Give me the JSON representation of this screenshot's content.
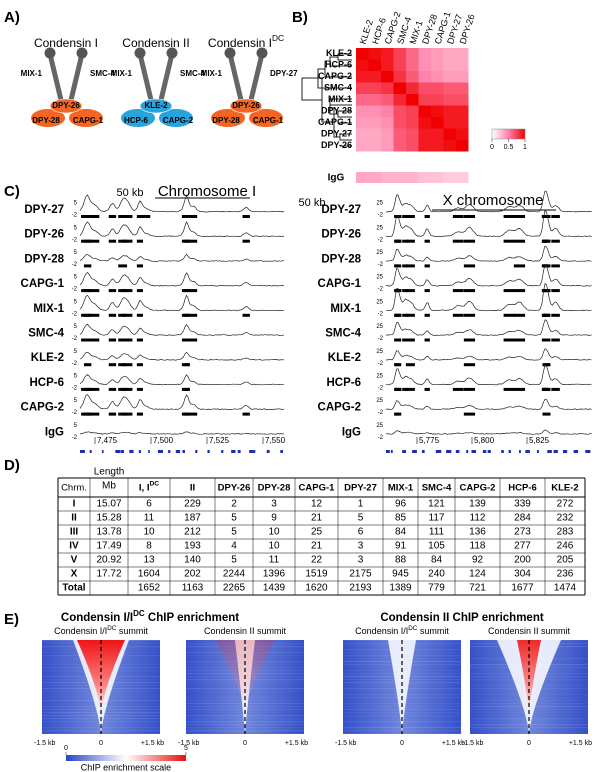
{
  "panel_labels": [
    "A)",
    "B)",
    "C)",
    "D)",
    "E)"
  ],
  "panel_a": {
    "complexes": [
      {
        "title": "Condensin I",
        "color": "#e8431e",
        "subunit_color": "#f26522",
        "subunits": [
          "MIX-1",
          "SMC-4",
          "DPY-26",
          "DPY-28",
          "CAPG-1"
        ]
      },
      {
        "title": "Condensin II",
        "color": "#29a3dc",
        "subunit_color": "#29a3dc",
        "subunits": [
          "MIX-1",
          "SMC-4",
          "KLE-2",
          "HCP-6",
          "CAPG-2"
        ]
      },
      {
        "title": "Condensin I",
        "title_sup": "DC",
        "color": "#e8431e",
        "subunit_color": "#f26522",
        "subunits": [
          "MIX-1",
          "DPY-27",
          "DPY-26",
          "DPY-28",
          "CAPG-1"
        ]
      }
    ]
  },
  "panel_b": {
    "labels": [
      "KLE-2",
      "HCP-6",
      "CAPG-2",
      "SMC-4",
      "MIX-1",
      "DPY-28",
      "CAPG-1",
      "DPY-27",
      "DPY-26"
    ],
    "label_colors": [
      "#29a3dc",
      "#29a3dc",
      "#29a3dc",
      "#000000",
      "#000000",
      "#e8431e",
      "#e8431e",
      "#000000",
      "#e8431e"
    ],
    "matrix": [
      [
        1,
        0.95,
        0.9,
        0.75,
        0.6,
        0.45,
        0.4,
        0.35,
        0.35
      ],
      [
        0.95,
        1,
        0.9,
        0.75,
        0.6,
        0.45,
        0.4,
        0.35,
        0.35
      ],
      [
        0.9,
        0.9,
        1,
        0.8,
        0.65,
        0.5,
        0.45,
        0.4,
        0.4
      ],
      [
        0.75,
        0.75,
        0.8,
        1,
        0.85,
        0.7,
        0.7,
        0.65,
        0.65
      ],
      [
        0.6,
        0.6,
        0.65,
        0.85,
        1,
        0.75,
        0.75,
        0.7,
        0.7
      ],
      [
        0.45,
        0.45,
        0.5,
        0.7,
        0.75,
        1,
        0.95,
        0.9,
        0.9
      ],
      [
        0.4,
        0.4,
        0.45,
        0.7,
        0.75,
        0.95,
        1,
        0.9,
        0.9
      ],
      [
        0.35,
        0.35,
        0.4,
        0.65,
        0.7,
        0.9,
        0.9,
        1,
        0.95
      ],
      [
        0.35,
        0.35,
        0.4,
        0.65,
        0.7,
        0.9,
        0.9,
        0.95,
        1
      ]
    ],
    "igg_label": "IgG",
    "igg_values": [
      0.35,
      0.35,
      0.3,
      0.3,
      0.3,
      0.25,
      0.25,
      0.2,
      0.2
    ],
    "scale_ticks": [
      0,
      0.5,
      1
    ]
  },
  "panel_c": {
    "scale_bar": "50 kb",
    "track_colors": [
      "#000000",
      "#e8431e",
      "#e8431e",
      "#e8431e",
      "#000000",
      "#000000",
      "#29a3dc",
      "#29a3dc",
      "#29a3dc",
      "#000000"
    ],
    "chromosomes": [
      {
        "title": "Chromosome I",
        "scale_top": "5",
        "scale_bottom": "-2",
        "tracks": [
          "DPY-27",
          "DPY-26",
          "DPY-28",
          "CAPG-1",
          "MIX-1",
          "SMC-4",
          "KLE-2",
          "HCP-6",
          "CAPG-2",
          "IgG"
        ],
        "coords": [
          "7,475",
          "7,500",
          "7,525",
          "7,550"
        ]
      },
      {
        "title": "X chromosome",
        "scale_top": "25",
        "scale_bottom": "-2",
        "tracks": [
          "DPY-27",
          "DPY-26",
          "DPY-28",
          "CAPG-1",
          "MIX-1",
          "SMC-4",
          "KLE-2",
          "HCP-6",
          "CAPG-2",
          "IgG"
        ],
        "coords": [
          "5,775",
          "5,800",
          "5,825"
        ]
      }
    ]
  },
  "panel_d": {
    "columns": [
      {
        "text": "Chrm.",
        "color": "#000000"
      },
      {
        "text": "Length",
        "line2": "Mb",
        "color": "#000000"
      },
      {
        "text": "I, I",
        "sup": "DC",
        "color": "#e8431e"
      },
      {
        "text": "II",
        "color": "#29a3dc"
      },
      {
        "text": "DPY-26",
        "color": "#e8431e"
      },
      {
        "text": "DPY-28",
        "color": "#e8431e"
      },
      {
        "text": "CAPG-1",
        "color": "#e8431e"
      },
      {
        "text": "DPY-27",
        "color": "#000000"
      },
      {
        "text": "MIX-1",
        "color": "#000000"
      },
      {
        "text": "SMC-4",
        "color": "#000000"
      },
      {
        "text": "CAPG-2",
        "color": "#29a3dc"
      },
      {
        "text": "HCP-6",
        "color": "#29a3dc"
      },
      {
        "text": "KLE-2",
        "color": "#29a3dc"
      }
    ],
    "rows": [
      [
        "I",
        15.07,
        6,
        229,
        2,
        3,
        12,
        1,
        96,
        121,
        139,
        339,
        272
      ],
      [
        "II",
        15.28,
        11,
        187,
        5,
        9,
        21,
        5,
        85,
        117,
        112,
        284,
        232
      ],
      [
        "III",
        13.78,
        10,
        212,
        5,
        10,
        25,
        6,
        84,
        111,
        136,
        273,
        283
      ],
      [
        "IV",
        17.49,
        8,
        193,
        4,
        10,
        21,
        3,
        91,
        105,
        118,
        277,
        246
      ],
      [
        "V",
        20.92,
        13,
        140,
        5,
        11,
        22,
        3,
        88,
        84,
        92,
        200,
        205
      ],
      [
        "X",
        17.72,
        1604,
        202,
        2244,
        1396,
        1519,
        2175,
        945,
        240,
        124,
        304,
        236
      ],
      [
        "Total",
        null,
        1652,
        1163,
        2265,
        1439,
        1620,
        2193,
        1389,
        779,
        721,
        1677,
        1474
      ]
    ]
  },
  "panel_e": {
    "groups": [
      {
        "title": "Condensin I/I",
        "title_sup": "DC",
        "title_rest": " ChIP enrichment",
        "color": "#e8431e"
      },
      {
        "title": "Condensin II ChIP enrichment",
        "color": "#29a3dc"
      }
    ],
    "plots": [
      {
        "title": "Condensin I/I",
        "title_sup": "DC",
        "title_rest": " summit"
      },
      {
        "title": "Condensin II summit"
      },
      {
        "title": "Condensin I/I",
        "title_sup": "DC",
        "title_rest": " summit"
      },
      {
        "title": "Condensin II summit"
      }
    ],
    "x_labels": [
      "-1.5 kb",
      "0",
      "+1.5 kb"
    ],
    "scale": {
      "ticks": [
        0,
        5
      ],
      "label": "ChIP enrichment scale"
    }
  }
}
